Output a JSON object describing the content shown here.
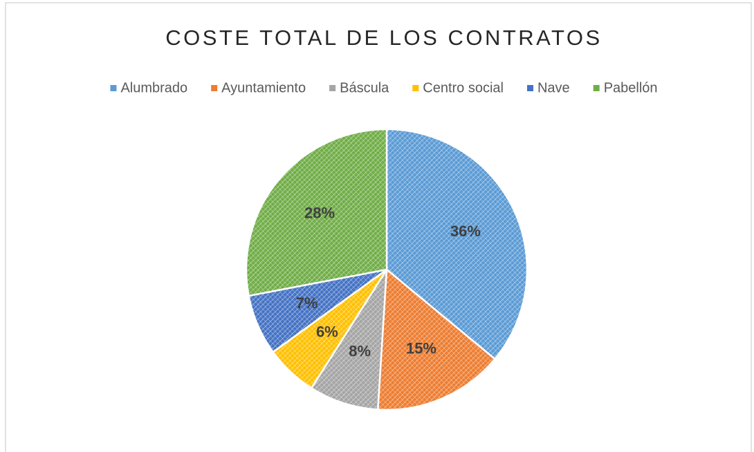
{
  "chart_data": {
    "type": "pie",
    "title": "COSTE TOTAL DE LOS CONTRATOS",
    "categories": [
      "Alumbrado",
      "Ayuntamiento",
      "Báscula",
      "Centro social",
      "Nave",
      "Pabellón"
    ],
    "values": [
      36,
      15,
      8,
      6,
      7,
      28
    ],
    "value_labels": [
      "36%",
      "15%",
      "8%",
      "6%",
      "7%",
      "28%"
    ],
    "colors": [
      "#5b9bd5",
      "#ed7d31",
      "#a5a5a5",
      "#ffc000",
      "#4472c4",
      "#70ad47"
    ],
    "legend": "top"
  }
}
